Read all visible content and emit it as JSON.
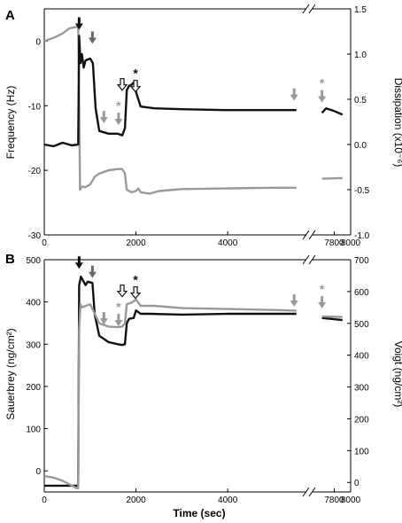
{
  "colors": {
    "black": "#111111",
    "gray": "#999999",
    "darkgray": "#666666",
    "axis": "#000000"
  },
  "chart_data": [
    {
      "type": "line",
      "panel_label": "A",
      "ylabel": "Frequency (Hz)",
      "y2label": "Dissipation (x10⁻⁶)",
      "ylim": [
        -30,
        5
      ],
      "yticks": [
        "0",
        "-10",
        "-20",
        "-30"
      ],
      "y2lim": [
        -1.0,
        1.5
      ],
      "y2ticks": [
        "1.5",
        "1.0",
        "0.5",
        "0.0",
        "-0.5",
        "-1.0"
      ],
      "xlabel": "",
      "x_broken_axis": true,
      "xticks": [
        "0",
        "2000",
        "4000",
        "7800",
        "8000"
      ],
      "series": [
        {
          "axis": "left",
          "color": "#999999",
          "segments": [
            [
              [
                0,
                0
              ],
              [
                200,
                0.5
              ],
              [
                400,
                1.2
              ],
              [
                550,
                2.0
              ],
              [
                700,
                2.2
              ],
              [
                740,
                2.3
              ],
              [
                760,
                -10
              ],
              [
                780,
                -23
              ],
              [
                820,
                -22.5
              ],
              [
                900,
                -22.6
              ],
              [
                1000,
                -22.2
              ],
              [
                1100,
                -21
              ],
              [
                1200,
                -20.5
              ],
              [
                1400,
                -20.0
              ],
              [
                1600,
                -19.8
              ],
              [
                1700,
                -19.8
              ],
              [
                1760,
                -20.5
              ],
              [
                1800,
                -23
              ],
              [
                1900,
                -23.4
              ],
              [
                2000,
                -23.2
              ],
              [
                2050,
                -22.8
              ],
              [
                2100,
                -23.4
              ],
              [
                2300,
                -23.6
              ],
              [
                2500,
                -23.2
              ],
              [
                3000,
                -22.9
              ],
              [
                4000,
                -22.8
              ],
              [
                5000,
                -22.7
              ],
              [
                5500,
                -22.7
              ]
            ],
            [
              [
                7650,
                -21.3
              ],
              [
                7900,
                -21.2
              ]
            ]
          ]
        },
        {
          "axis": "right",
          "color": "#111111",
          "segments": [
            [
              [
                0,
                0.0
              ],
              [
                200,
                -0.02
              ],
              [
                400,
                0.02
              ],
              [
                600,
                -0.01
              ],
              [
                740,
                0.0
              ],
              [
                760,
                1.2
              ],
              [
                790,
                0.9
              ],
              [
                820,
                1.0
              ],
              [
                860,
                0.85
              ],
              [
                900,
                0.93
              ],
              [
                1000,
                0.95
              ],
              [
                1060,
                0.9
              ],
              [
                1120,
                0.4
              ],
              [
                1200,
                0.15
              ],
              [
                1400,
                0.12
              ],
              [
                1600,
                0.12
              ],
              [
                1700,
                0.1
              ],
              [
                1760,
                0.18
              ],
              [
                1800,
                0.6
              ],
              [
                1850,
                0.65
              ],
              [
                1900,
                0.66
              ],
              [
                1980,
                0.7
              ],
              [
                2000,
                0.58
              ],
              [
                2100,
                0.42
              ],
              [
                2400,
                0.4
              ],
              [
                3000,
                0.39
              ],
              [
                4000,
                0.38
              ],
              [
                5000,
                0.38
              ],
              [
                5500,
                0.38
              ]
            ],
            [
              [
                7650,
                0.35
              ],
              [
                7700,
                0.4
              ],
              [
                7800,
                0.37
              ],
              [
                7900,
                0.33
              ]
            ]
          ]
        }
      ],
      "annotations": [
        {
          "type": "arrow",
          "style": "filled",
          "color": "#111111",
          "x": 760,
          "y": 3.7,
          "star": false
        },
        {
          "type": "arrow",
          "style": "filled",
          "color": "#666666",
          "x": 1050,
          "y": 1.5,
          "star": false
        },
        {
          "type": "arrow",
          "style": "filled",
          "color": "#999999",
          "x": 1300,
          "y": -10.8,
          "star": false
        },
        {
          "type": "arrow",
          "style": "filled",
          "color": "#999999",
          "x": 1620,
          "y": -10.8,
          "star": true
        },
        {
          "type": "arrow",
          "style": "open",
          "color": "#111111",
          "x": 1700,
          "y": -5.8,
          "star": false
        },
        {
          "type": "arrow",
          "style": "open",
          "color": "#111111",
          "x": 1990,
          "y": -5.8,
          "star": true
        },
        {
          "type": "arrow",
          "style": "filled",
          "color": "#999999",
          "x": 5450,
          "y": -7.3,
          "star": false
        },
        {
          "type": "arrow",
          "style": "filled",
          "color": "#999999",
          "x": 7650,
          "y": -7.3,
          "star": true
        }
      ]
    },
    {
      "type": "line",
      "panel_label": "B",
      "ylabel": "Sauerbrey (ng/cm²)",
      "y2label": "Voigt (ng/cm²)",
      "ylim": [
        -50,
        500
      ],
      "yticks": [
        "500",
        "400",
        "300",
        "200",
        "100",
        "0"
      ],
      "y2lim": [
        -30,
        700
      ],
      "y2ticks": [
        "700",
        "600",
        "500",
        "400",
        "300",
        "200",
        "100",
        "0"
      ],
      "xlabel": "Time (sec)",
      "x_broken_axis": true,
      "xticks": [
        "0",
        "2000",
        "4000",
        "7800",
        "8000"
      ],
      "series": [
        {
          "axis": "left",
          "color": "#111111",
          "segments": [
            [
              [
                0,
                -35
              ],
              [
                740,
                -35
              ],
              [
                760,
                440
              ],
              [
                800,
                460
              ],
              [
                850,
                450
              ],
              [
                900,
                440
              ],
              [
                950,
                448
              ],
              [
                1050,
                445
              ],
              [
                1100,
                370
              ],
              [
                1200,
                320
              ],
              [
                1400,
                305
              ],
              [
                1600,
                300
              ],
              [
                1700,
                298
              ],
              [
                1760,
                300
              ],
              [
                1800,
                350
              ],
              [
                1850,
                360
              ],
              [
                1950,
                362
              ],
              [
                2000,
                380
              ],
              [
                2100,
                372
              ],
              [
                2300,
                372
              ],
              [
                3000,
                370
              ],
              [
                4000,
                372
              ],
              [
                5000,
                372
              ],
              [
                5500,
                372
              ]
            ],
            [
              [
                7650,
                362
              ],
              [
                7900,
                357
              ]
            ]
          ]
        },
        {
          "axis": "right",
          "color": "#999999",
          "segments": [
            [
              [
                0,
                20
              ],
              [
                200,
                15
              ],
              [
                400,
                5
              ],
              [
                600,
                -10
              ],
              [
                700,
                -18
              ],
              [
                740,
                -18
              ],
              [
                760,
                480
              ],
              [
                790,
                560
              ],
              [
                820,
                550
              ],
              [
                1000,
                560
              ],
              [
                1100,
                530
              ],
              [
                1200,
                500
              ],
              [
                1400,
                490
              ],
              [
                1600,
                488
              ],
              [
                1700,
                490
              ],
              [
                1760,
                500
              ],
              [
                1800,
                560
              ],
              [
                1900,
                565
              ],
              [
                2000,
                575
              ],
              [
                2100,
                555
              ],
              [
                2400,
                555
              ],
              [
                3000,
                548
              ],
              [
                4000,
                545
              ],
              [
                5000,
                542
              ],
              [
                5500,
                540
              ]
            ],
            [
              [
                7650,
                522
              ],
              [
                7900,
                520
              ]
            ]
          ]
        }
      ],
      "annotations": [
        {
          "type": "arrow",
          "style": "filled",
          "color": "#111111",
          "x": 760,
          "y": 508,
          "star": false
        },
        {
          "type": "arrow",
          "style": "filled",
          "color": "#666666",
          "x": 1050,
          "y": 486,
          "star": false
        },
        {
          "type": "arrow",
          "style": "filled",
          "color": "#999999",
          "x": 1300,
          "y": 376,
          "star": false
        },
        {
          "type": "arrow",
          "style": "filled",
          "color": "#999999",
          "x": 1620,
          "y": 376,
          "star": true
        },
        {
          "type": "arrow",
          "style": "open",
          "color": "#111111",
          "x": 1700,
          "y": 440,
          "star": false
        },
        {
          "type": "arrow",
          "style": "open",
          "color": "#111111",
          "x": 1990,
          "y": 440,
          "star": true
        },
        {
          "type": "arrow",
          "style": "filled",
          "color": "#999999",
          "x": 5450,
          "y": 418,
          "star": false
        },
        {
          "type": "arrow",
          "style": "filled",
          "color": "#999999",
          "x": 7650,
          "y": 418,
          "star": true
        }
      ]
    }
  ]
}
